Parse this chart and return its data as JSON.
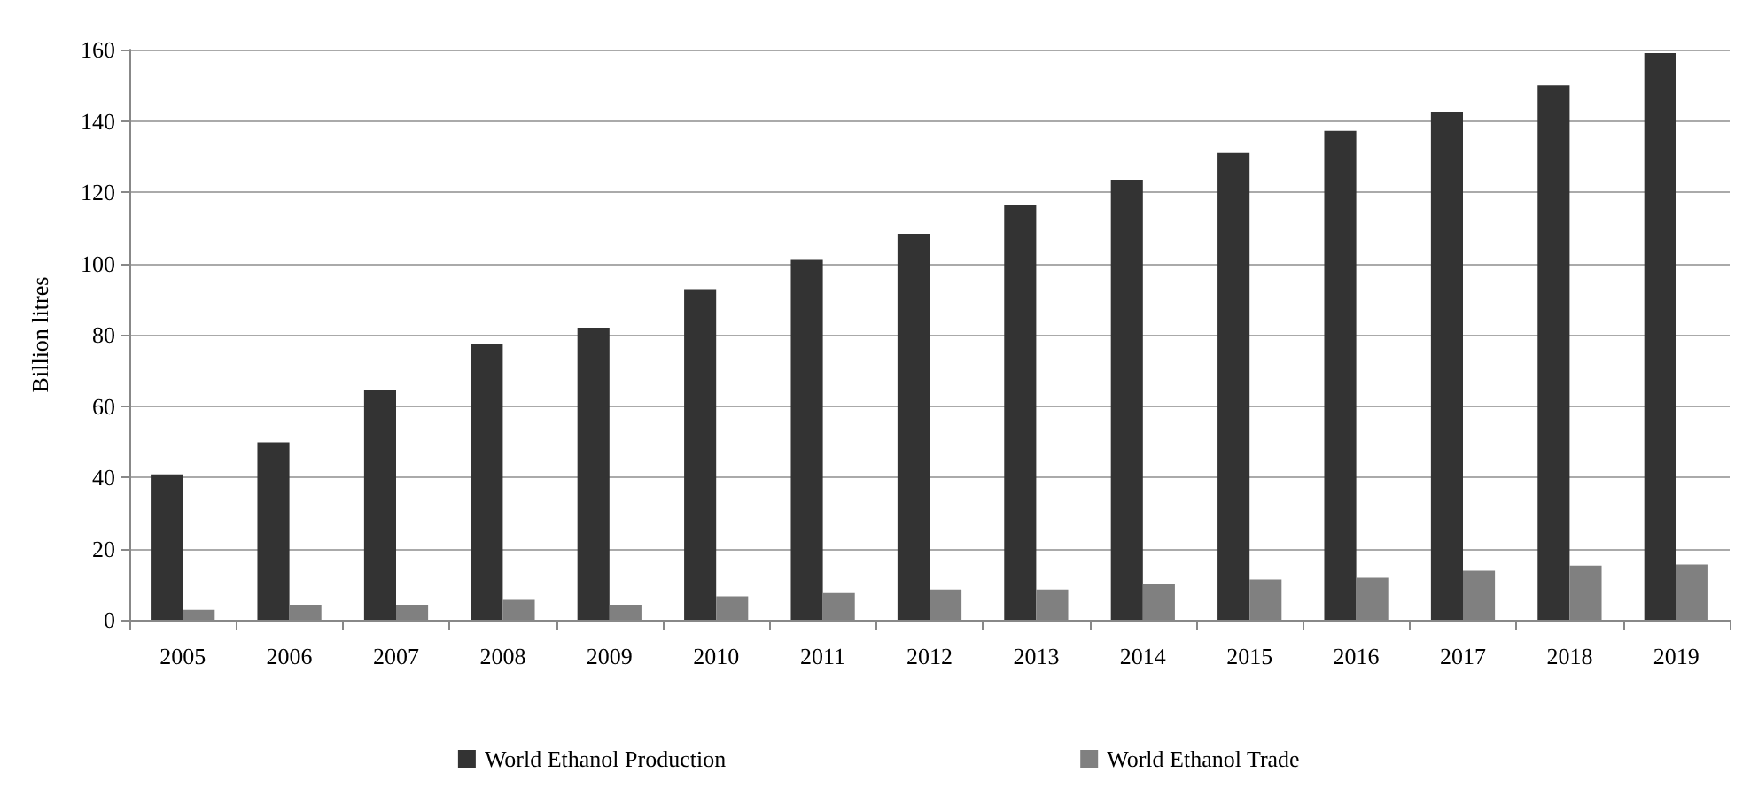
{
  "chart_data": {
    "type": "bar",
    "ylabel": "Billion litres",
    "categories": [
      "2005",
      "2006",
      "2007",
      "2008",
      "2009",
      "2010",
      "2011",
      "2012",
      "2013",
      "2014",
      "2015",
      "2016",
      "2017",
      "2018",
      "2019"
    ],
    "series": [
      {
        "name": "World Ethanol Production",
        "color": "#333333",
        "values": [
          40.8,
          49.8,
          64.5,
          77.3,
          82,
          92.8,
          101,
          108.3,
          116.4,
          123.5,
          131,
          137.2,
          142.4,
          150,
          159
        ]
      },
      {
        "name": "World Ethanol Trade",
        "color": "#808080",
        "values": [
          2.8,
          4.2,
          4.2,
          5.6,
          4.2,
          6.6,
          7.5,
          8.5,
          8.5,
          10,
          11.3,
          11.8,
          13.8,
          15.2,
          15.5
        ]
      }
    ],
    "ylim": [
      0,
      160
    ],
    "yticks": [
      0,
      20,
      40,
      60,
      80,
      100,
      120,
      140,
      160
    ],
    "grid": "y",
    "legend": "bottom"
  }
}
